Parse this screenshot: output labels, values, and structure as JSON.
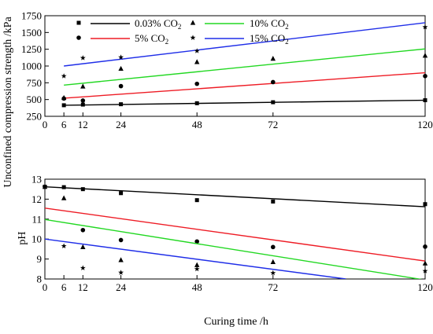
{
  "chart_data": [
    {
      "type": "scatter",
      "ylabel": "Unconfined compression strength  /kPa",
      "xlim": [
        0,
        120
      ],
      "ylim": [
        250,
        1750
      ],
      "xticks": [
        0,
        6,
        12,
        24,
        48,
        72,
        120
      ],
      "yticks": [
        250,
        500,
        750,
        1000,
        1250,
        1500,
        1750
      ],
      "legend_position": "top-left",
      "series": [
        {
          "name": "0.03% CO2",
          "marker": "square",
          "color": "#000000",
          "x": [
            6,
            12,
            24,
            48,
            72,
            120
          ],
          "y": [
            415,
            425,
            430,
            445,
            460,
            490
          ],
          "fit": [
            [
              6,
              415
            ],
            [
              120,
              490
            ]
          ]
        },
        {
          "name": "5% CO2",
          "marker": "circle",
          "color": "#ee1c25",
          "x": [
            6,
            12,
            24,
            48,
            72,
            120
          ],
          "y": [
            515,
            485,
            700,
            735,
            760,
            850
          ],
          "fit": [
            [
              6,
              520
            ],
            [
              120,
              900
            ]
          ]
        },
        {
          "name": "10% CO2",
          "marker": "triangle",
          "color": "#22d822",
          "x": [
            6,
            12,
            24,
            48,
            72,
            120
          ],
          "y": [
            525,
            695,
            960,
            1060,
            1110,
            1155
          ],
          "fit": [
            [
              6,
              715
            ],
            [
              120,
              1255
            ]
          ]
        },
        {
          "name": "15% CO2",
          "marker": "star",
          "color": "#1f2ee8",
          "x": [
            6,
            12,
            24,
            48,
            120
          ],
          "y": [
            850,
            1120,
            1130,
            1225,
            1580
          ],
          "fit": [
            [
              6,
              1000
            ],
            [
              120,
              1645
            ]
          ]
        }
      ]
    },
    {
      "type": "scatter",
      "xlabel": "Curing time  /h",
      "ylabel": "pH",
      "xlim": [
        0,
        120
      ],
      "ylim": [
        8,
        13
      ],
      "xticks": [
        0,
        6,
        12,
        24,
        48,
        72,
        120
      ],
      "yticks": [
        8,
        9,
        10,
        11,
        12,
        13
      ],
      "series": [
        {
          "name": "0.03% CO2",
          "marker": "square",
          "color": "#000000",
          "x": [
            0,
            6,
            12,
            24,
            48,
            72,
            120
          ],
          "y": [
            12.62,
            12.6,
            12.5,
            12.3,
            11.95,
            11.88,
            11.75
          ],
          "fit": [
            [
              0,
              12.62
            ],
            [
              120,
              11.62
            ]
          ]
        },
        {
          "name": "5% CO2",
          "marker": "circle",
          "color": "#ee1c25",
          "x": [
            0,
            12,
            24,
            48,
            72,
            120
          ],
          "y": [
            12.62,
            10.45,
            9.95,
            9.88,
            9.6,
            9.62
          ],
          "fit": [
            [
              0,
              11.55
            ],
            [
              120,
              8.9
            ]
          ]
        },
        {
          "name": "10% CO2",
          "marker": "triangle",
          "color": "#22d822",
          "x": [
            0,
            6,
            12,
            24,
            48,
            72,
            120
          ],
          "y": [
            12.62,
            12.05,
            9.6,
            8.95,
            8.7,
            8.85,
            8.78
          ],
          "fit": [
            [
              0,
              10.98
            ],
            [
              120,
              7.95
            ]
          ]
        },
        {
          "name": "15% CO2",
          "marker": "star",
          "color": "#1f2ee8",
          "x": [
            0,
            6,
            12,
            24,
            48,
            72,
            120
          ],
          "y": [
            12.62,
            9.65,
            8.55,
            8.32,
            8.5,
            8.3,
            8.4
          ],
          "fit": [
            [
              0,
              10
            ],
            [
              95,
              8
            ]
          ]
        }
      ]
    }
  ]
}
